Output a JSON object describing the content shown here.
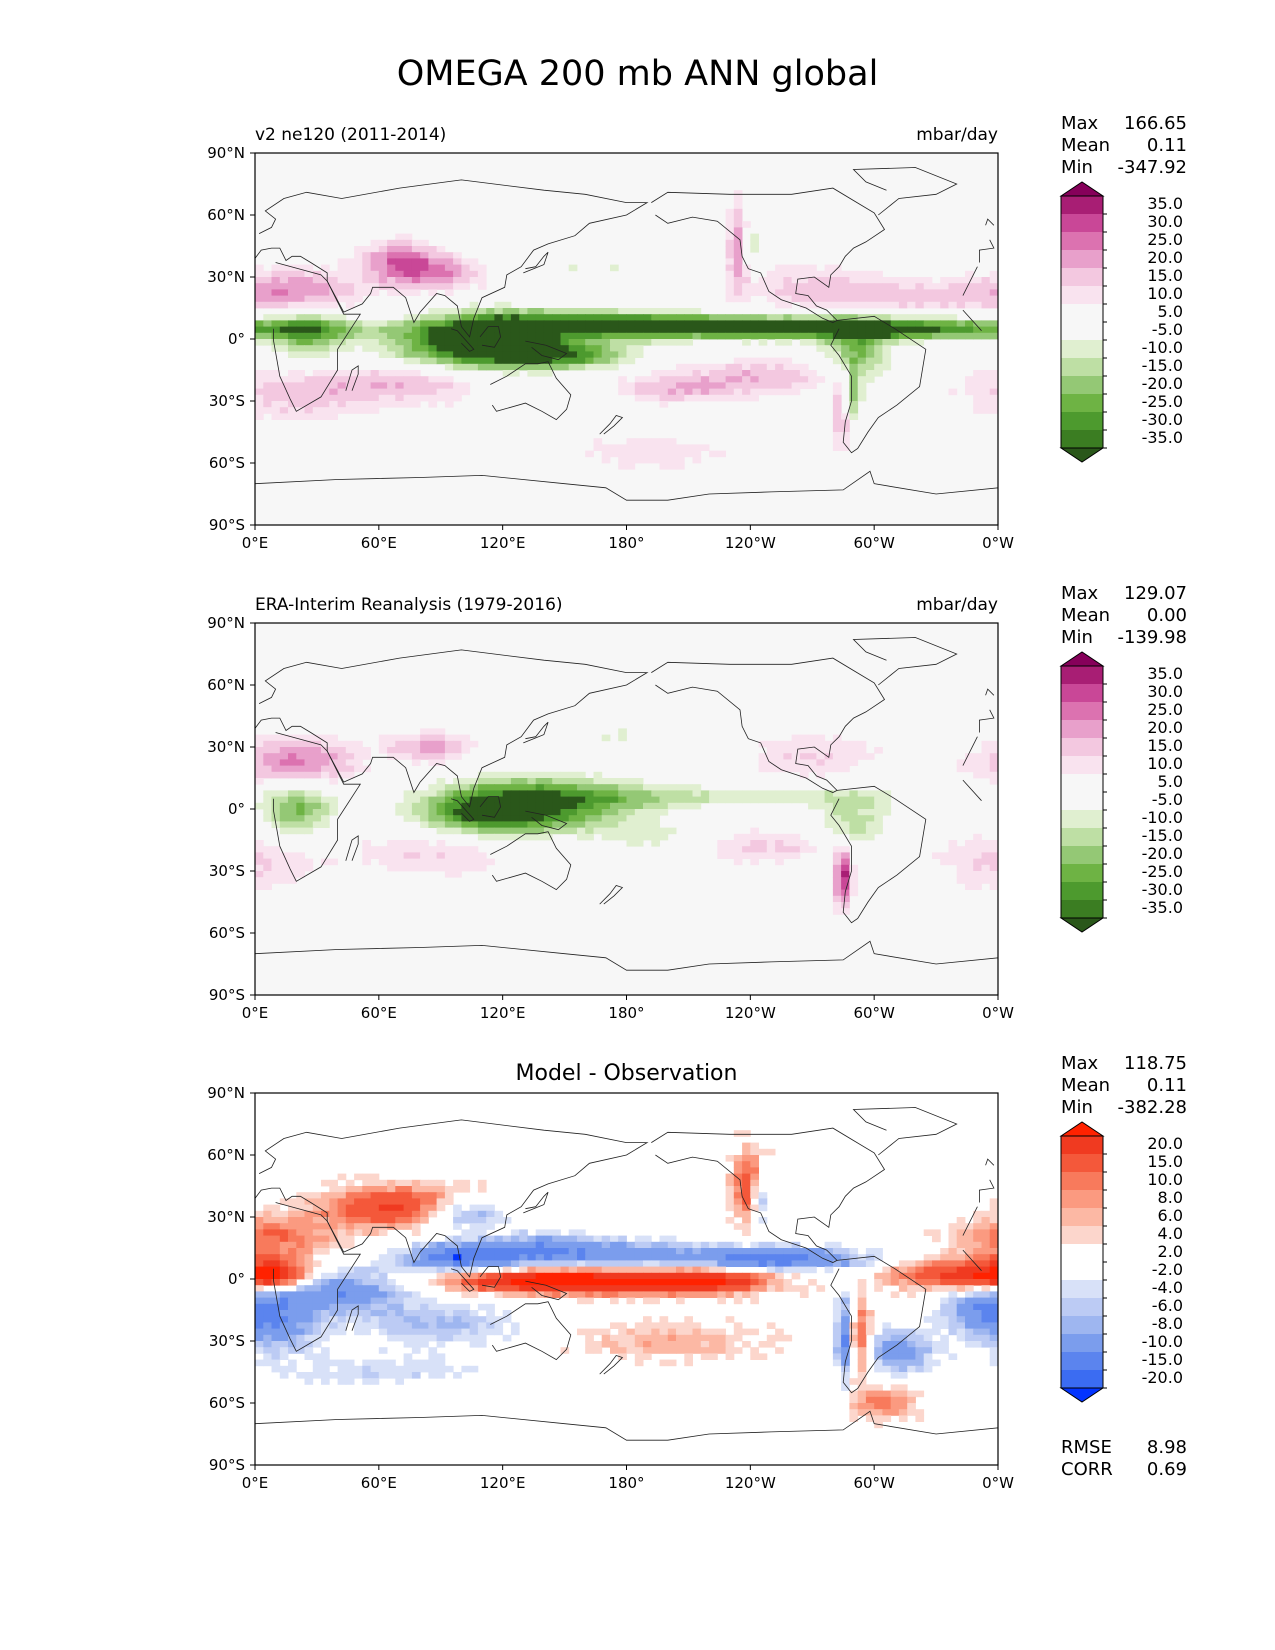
{
  "figure": {
    "title": "OMEGA 200 mb ANN global"
  },
  "colors": {
    "seq_bar": [
      "#2a571a",
      "#3b7d22",
      "#4d9a2e",
      "#6eb344",
      "#94c875",
      "#bedfa4",
      "#e0efd0",
      "#f7f7f7",
      "#f7f7f7",
      "#f9e3ef",
      "#f3c8e0",
      "#e8a0cb",
      "#dc72b0",
      "#c94797",
      "#a81e74",
      "#86005a"
    ],
    "diff_bar": [
      "#0334ff",
      "#3b6cf2",
      "#5b84ee",
      "#7b9ded",
      "#9eb6f0",
      "#bccbf4",
      "#d8e1f8",
      "#ffffff",
      "#ffffff",
      "#fcd6cc",
      "#fcb8a4",
      "#fb9a80",
      "#f87a5c",
      "#f4583a",
      "#f03a20",
      "#ff2200"
    ]
  },
  "chart_data": [
    {
      "type": "heatmap",
      "panel": "test",
      "left_title": "v2 ne120 (2011-2014)",
      "right_title": "mbar/day",
      "stats": [
        {
          "label": "Max",
          "value": "166.65"
        },
        {
          "label": "Mean",
          "value": "0.11"
        },
        {
          "label": "Min",
          "value": "-347.92"
        }
      ],
      "x_ticks": [
        "0°E",
        "60°E",
        "120°E",
        "180°",
        "120°W",
        "60°W",
        "0°W"
      ],
      "y_ticks": [
        "90°N",
        "60°N",
        "30°N",
        "0°",
        "30°S",
        "60°S",
        "90°S"
      ],
      "xlim": [
        0,
        360
      ],
      "ylim": [
        -90,
        90
      ],
      "colorbar": {
        "levels": [
          "35.0",
          "30.0",
          "25.0",
          "20.0",
          "15.0",
          "10.0",
          "5.0",
          "-5.0",
          "-10.0",
          "-15.0",
          "-20.0",
          "-25.0",
          "-30.0",
          "-35.0"
        ],
        "palette": "seq"
      }
    },
    {
      "type": "heatmap",
      "panel": "reference",
      "left_title": "ERA-Interim Reanalysis (1979-2016)",
      "right_title": "mbar/day",
      "stats": [
        {
          "label": "Max",
          "value": "129.07"
        },
        {
          "label": "Mean",
          "value": "0.00"
        },
        {
          "label": "Min",
          "value": "-139.98"
        }
      ],
      "x_ticks": [
        "0°E",
        "60°E",
        "120°E",
        "180°",
        "120°W",
        "60°W",
        "0°W"
      ],
      "y_ticks": [
        "90°N",
        "60°N",
        "30°N",
        "0°",
        "30°S",
        "60°S",
        "90°S"
      ],
      "xlim": [
        0,
        360
      ],
      "ylim": [
        -90,
        90
      ],
      "colorbar": {
        "levels": [
          "35.0",
          "30.0",
          "25.0",
          "20.0",
          "15.0",
          "10.0",
          "5.0",
          "-5.0",
          "-10.0",
          "-15.0",
          "-20.0",
          "-25.0",
          "-30.0",
          "-35.0"
        ],
        "palette": "seq"
      }
    },
    {
      "type": "heatmap",
      "panel": "difference",
      "center_title": "Model - Observation",
      "stats": [
        {
          "label": "Max",
          "value": "118.75"
        },
        {
          "label": "Mean",
          "value": "0.11"
        },
        {
          "label": "Min",
          "value": "-382.28"
        }
      ],
      "extra_stats": [
        {
          "label": "RMSE",
          "value": "8.98"
        },
        {
          "label": "CORR",
          "value": "0.69"
        }
      ],
      "x_ticks": [
        "0°E",
        "60°E",
        "120°E",
        "180°",
        "120°W",
        "60°W",
        "0°W"
      ],
      "y_ticks": [
        "90°N",
        "60°N",
        "30°N",
        "0°",
        "30°S",
        "60°S",
        "90°S"
      ],
      "xlim": [
        0,
        360
      ],
      "ylim": [
        -90,
        90
      ],
      "colorbar": {
        "levels": [
          "20.0",
          "15.0",
          "10.0",
          "8.0",
          "6.0",
          "4.0",
          "2.0",
          "-2.0",
          "-4.0",
          "-6.0",
          "-8.0",
          "-10.0",
          "-15.0",
          "-20.0"
        ],
        "palette": "diff"
      }
    }
  ]
}
